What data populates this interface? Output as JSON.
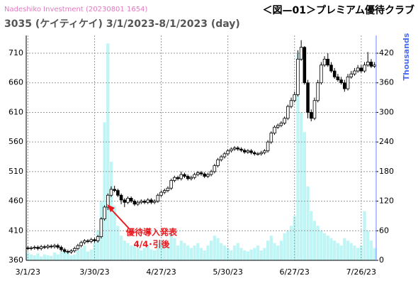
{
  "chart_data": {
    "type": "candlestick",
    "source": "Nadeshiko Investment (20230801 1654)",
    "subtitle": "3035 (ケイティケイ) 3/1/2023-8/1/2023 (day)",
    "title": "＜図—01＞プレミアム優待クラブ",
    "y2_label": "Thousands",
    "annotation": [
      "優待導入発表",
      "4/4･引後"
    ],
    "annotation_color": "#e8191f",
    "categories": [
      "3/1/23",
      null,
      null,
      null,
      null,
      null,
      null,
      null,
      null,
      null,
      null,
      null,
      null,
      null,
      null,
      null,
      null,
      null,
      null,
      null,
      "3/30/23",
      null,
      null,
      null,
      null,
      null,
      null,
      null,
      null,
      null,
      null,
      null,
      null,
      null,
      null,
      null,
      null,
      null,
      null,
      null,
      "4/27/23",
      null,
      null,
      null,
      null,
      null,
      null,
      null,
      null,
      null,
      null,
      null,
      null,
      null,
      null,
      null,
      null,
      null,
      null,
      null,
      "5/30/23",
      null,
      null,
      null,
      null,
      null,
      null,
      null,
      null,
      null,
      null,
      null,
      null,
      null,
      null,
      null,
      null,
      null,
      null,
      null,
      "6/27/23",
      null,
      null,
      null,
      null,
      null,
      null,
      null,
      null,
      null,
      null,
      null,
      null,
      null,
      null,
      null,
      null,
      null,
      null,
      null,
      "7/26/23",
      null,
      null,
      null,
      null
    ],
    "open": [
      381,
      380,
      381,
      382,
      380,
      383,
      382,
      384,
      383,
      385,
      382,
      378,
      375,
      374,
      376,
      380,
      385,
      390,
      393,
      392,
      395,
      393,
      400,
      430,
      450,
      470,
      480,
      478,
      470,
      462,
      458,
      465,
      460,
      455,
      458,
      460,
      458,
      462,
      458,
      460,
      470,
      475,
      478,
      482,
      495,
      500,
      498,
      505,
      502,
      498,
      500,
      505,
      508,
      506,
      502,
      505,
      510,
      520,
      530,
      535,
      540,
      545,
      548,
      550,
      548,
      546,
      543,
      545,
      542,
      540,
      540,
      542,
      545,
      560,
      575,
      585,
      588,
      592,
      600,
      620,
      630,
      640,
      700,
      720,
      660,
      610,
      600,
      630,
      660,
      690,
      700,
      690,
      680,
      670,
      665,
      660,
      650,
      670,
      675,
      680,
      685,
      680,
      690,
      695,
      688
    ],
    "high": [
      384,
      384,
      385,
      385,
      386,
      386,
      387,
      387,
      388,
      388,
      385,
      381,
      378,
      379,
      383,
      388,
      393,
      396,
      396,
      398,
      398,
      403,
      433,
      453,
      473,
      485,
      486,
      481,
      473,
      465,
      468,
      468,
      463,
      461,
      463,
      463,
      465,
      465,
      463,
      473,
      478,
      481,
      485,
      498,
      503,
      503,
      510,
      508,
      505,
      503,
      508,
      511,
      511,
      509,
      508,
      513,
      523,
      533,
      538,
      543,
      548,
      551,
      553,
      553,
      551,
      549,
      548,
      548,
      545,
      543,
      545,
      548,
      563,
      578,
      588,
      591,
      595,
      603,
      623,
      635,
      645,
      715,
      732,
      722,
      665,
      615,
      635,
      665,
      695,
      705,
      710,
      695,
      685,
      675,
      670,
      665,
      675,
      680,
      685,
      690,
      690,
      695,
      712,
      700,
      695
    ],
    "low": [
      377,
      377,
      378,
      377,
      377,
      379,
      379,
      380,
      380,
      379,
      375,
      372,
      371,
      371,
      373,
      377,
      382,
      387,
      389,
      389,
      390,
      390,
      397,
      427,
      445,
      467,
      475,
      467,
      455,
      450,
      455,
      457,
      452,
      452,
      455,
      455,
      455,
      455,
      455,
      457,
      467,
      472,
      475,
      479,
      492,
      495,
      495,
      499,
      495,
      495,
      497,
      502,
      503,
      499,
      499,
      502,
      507,
      517,
      527,
      532,
      537,
      542,
      545,
      545,
      543,
      540,
      540,
      539,
      537,
      537,
      537,
      539,
      542,
      557,
      572,
      582,
      585,
      589,
      597,
      617,
      627,
      637,
      697,
      657,
      600,
      595,
      597,
      627,
      657,
      687,
      687,
      677,
      667,
      662,
      657,
      645,
      647,
      667,
      672,
      677,
      677,
      677,
      687,
      685,
      685
    ],
    "close": [
      380,
      381,
      382,
      380,
      383,
      382,
      384,
      383,
      385,
      382,
      378,
      375,
      374,
      376,
      380,
      385,
      390,
      393,
      392,
      395,
      393,
      400,
      430,
      450,
      470,
      480,
      478,
      470,
      462,
      458,
      465,
      460,
      455,
      458,
      460,
      458,
      462,
      458,
      460,
      470,
      475,
      478,
      482,
      495,
      500,
      498,
      505,
      502,
      498,
      500,
      505,
      508,
      506,
      502,
      505,
      510,
      520,
      530,
      535,
      540,
      545,
      548,
      550,
      548,
      546,
      543,
      545,
      542,
      540,
      540,
      542,
      545,
      560,
      575,
      585,
      588,
      592,
      600,
      620,
      630,
      640,
      700,
      720,
      660,
      610,
      600,
      630,
      660,
      690,
      700,
      690,
      680,
      670,
      665,
      660,
      650,
      670,
      675,
      680,
      685,
      680,
      690,
      695,
      688,
      690
    ],
    "volume": [
      15,
      12,
      10,
      14,
      8,
      12,
      10,
      9,
      16,
      12,
      18,
      22,
      15,
      10,
      12,
      20,
      25,
      30,
      18,
      22,
      35,
      60,
      120,
      280,
      440,
      200,
      110,
      70,
      50,
      40,
      35,
      30,
      28,
      25,
      20,
      25,
      30,
      22,
      20,
      35,
      40,
      30,
      35,
      55,
      45,
      30,
      40,
      35,
      30,
      25,
      30,
      35,
      25,
      20,
      30,
      40,
      50,
      45,
      35,
      30,
      25,
      20,
      30,
      35,
      25,
      20,
      18,
      22,
      25,
      30,
      20,
      25,
      40,
      50,
      35,
      30,
      40,
      55,
      60,
      70,
      90,
      420,
      300,
      260,
      150,
      100,
      80,
      70,
      60,
      55,
      50,
      45,
      40,
      35,
      30,
      45,
      40,
      35,
      30,
      25,
      30,
      100,
      60,
      40,
      25
    ],
    "volume_color": "#bff5f5",
    "up_color": "#ffffff",
    "down_color": "#000000",
    "ylim": [
      360,
      740
    ],
    "yticks": [
      360,
      410,
      460,
      510,
      560,
      610,
      660,
      710
    ],
    "y2lim": [
      0,
      456
    ],
    "y2ticks": [
      0,
      60,
      120,
      180,
      240,
      300,
      360,
      420
    ],
    "grid": true
  }
}
